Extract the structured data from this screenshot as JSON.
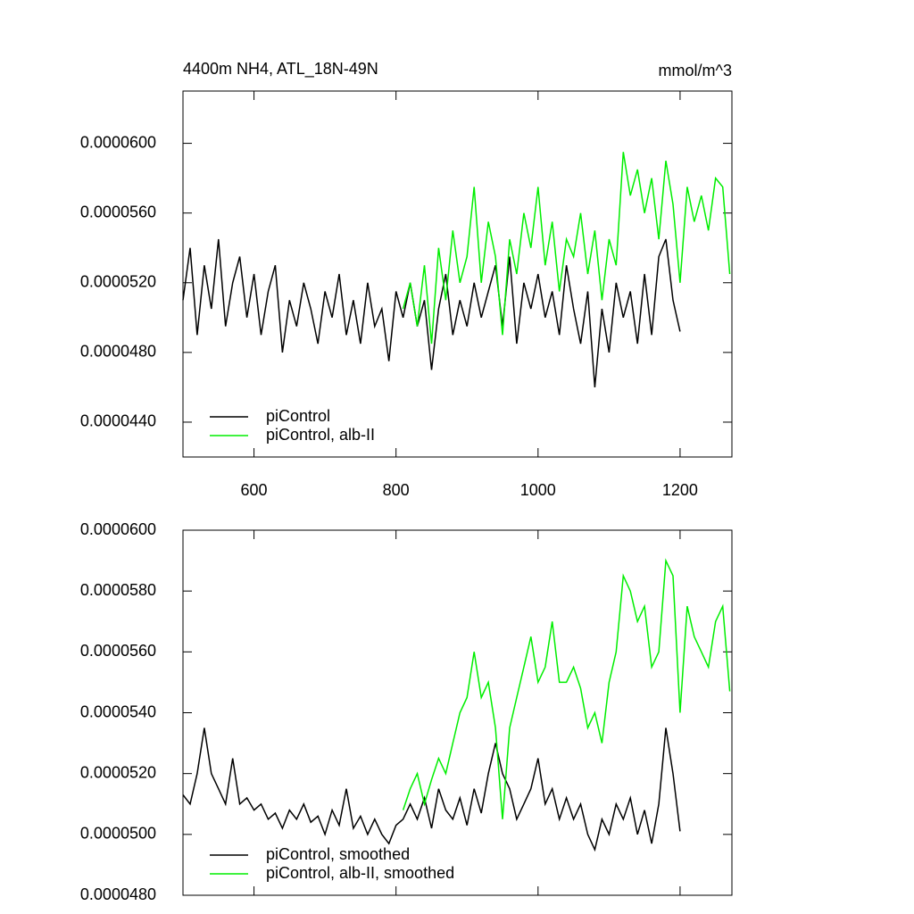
{
  "chart_data": [
    {
      "type": "line",
      "title": "4400m NH4, ATL_18N-49N",
      "units": "mmol/m^3",
      "xlim": [
        500,
        1273
      ],
      "xticks": [
        600,
        800,
        1000,
        1200
      ],
      "xtick_labels": true,
      "ylim": [
        4.2e-05,
        6.3e-05
      ],
      "yticks": [
        {
          "value": 4.4e-05,
          "label": "0.0000440"
        },
        {
          "value": 4.8e-05,
          "label": "0.0000480"
        },
        {
          "value": 5.2e-05,
          "label": "0.0000520"
        },
        {
          "value": 5.6e-05,
          "label": "0.0000560"
        },
        {
          "value": 6e-05,
          "label": "0.0000600"
        }
      ],
      "legend": "lower left",
      "series": [
        {
          "name": "piControl",
          "color": "#000000",
          "x": [
            500,
            510,
            520,
            530,
            540,
            550,
            560,
            570,
            580,
            590,
            600,
            610,
            620,
            630,
            640,
            650,
            660,
            670,
            680,
            690,
            700,
            710,
            720,
            730,
            740,
            750,
            760,
            770,
            780,
            790,
            800,
            810,
            820,
            830,
            840,
            850,
            860,
            870,
            880,
            890,
            900,
            910,
            920,
            930,
            940,
            950,
            960,
            970,
            980,
            990,
            1000,
            1010,
            1020,
            1030,
            1040,
            1050,
            1060,
            1070,
            1080,
            1090,
            1100,
            1110,
            1120,
            1130,
            1140,
            1150,
            1160,
            1170,
            1180,
            1190,
            1200
          ],
          "values": [
            5.1e-05,
            5.4e-05,
            4.9e-05,
            5.3e-05,
            5.05e-05,
            5.45e-05,
            4.95e-05,
            5.2e-05,
            5.35e-05,
            5e-05,
            5.25e-05,
            4.9e-05,
            5.15e-05,
            5.3e-05,
            4.8e-05,
            5.1e-05,
            4.95e-05,
            5.2e-05,
            5.05e-05,
            4.85e-05,
            5.15e-05,
            5e-05,
            5.25e-05,
            4.9e-05,
            5.1e-05,
            4.85e-05,
            5.2e-05,
            4.95e-05,
            5.05e-05,
            4.75e-05,
            5.15e-05,
            5e-05,
            5.2e-05,
            4.95e-05,
            5.1e-05,
            4.7e-05,
            5.05e-05,
            5.25e-05,
            4.9e-05,
            5.1e-05,
            4.95e-05,
            5.2e-05,
            5e-05,
            5.15e-05,
            5.3e-05,
            4.95e-05,
            5.35e-05,
            4.85e-05,
            5.2e-05,
            5.05e-05,
            5.25e-05,
            5e-05,
            5.15e-05,
            4.9e-05,
            5.3e-05,
            5.05e-05,
            4.85e-05,
            5.15e-05,
            4.6e-05,
            5.05e-05,
            4.8e-05,
            5.2e-05,
            5e-05,
            5.15e-05,
            4.85e-05,
            5.25e-05,
            4.9e-05,
            5.35e-05,
            5.45e-05,
            5.1e-05,
            4.92e-05
          ]
        },
        {
          "name": "piControl, alb-II",
          "color": "#00ee00",
          "x": [
            810,
            820,
            830,
            840,
            850,
            860,
            870,
            880,
            890,
            900,
            910,
            920,
            930,
            940,
            950,
            960,
            970,
            980,
            990,
            1000,
            1010,
            1020,
            1030,
            1040,
            1050,
            1060,
            1070,
            1080,
            1090,
            1100,
            1110,
            1120,
            1130,
            1140,
            1150,
            1160,
            1170,
            1180,
            1190,
            1200,
            1210,
            1220,
            1230,
            1240,
            1250,
            1260,
            1270
          ],
          "values": [
            5.05e-05,
            5.2e-05,
            4.95e-05,
            5.3e-05,
            4.85e-05,
            5.4e-05,
            5.1e-05,
            5.5e-05,
            5.2e-05,
            5.35e-05,
            5.75e-05,
            5.2e-05,
            5.55e-05,
            5.35e-05,
            4.9e-05,
            5.45e-05,
            5.25e-05,
            5.6e-05,
            5.4e-05,
            5.75e-05,
            5.3e-05,
            5.55e-05,
            5.15e-05,
            5.45e-05,
            5.35e-05,
            5.6e-05,
            5.25e-05,
            5.5e-05,
            5.1e-05,
            5.45e-05,
            5.3e-05,
            5.95e-05,
            5.7e-05,
            5.85e-05,
            5.6e-05,
            5.8e-05,
            5.45e-05,
            5.9e-05,
            5.65e-05,
            5.2e-05,
            5.75e-05,
            5.55e-05,
            5.7e-05,
            5.5e-05,
            5.8e-05,
            5.75e-05,
            5.25e-05
          ]
        }
      ]
    },
    {
      "type": "line",
      "xlim": [
        500,
        1273
      ],
      "xticks": [
        600,
        800,
        1000,
        1200
      ],
      "xtick_labels": false,
      "ylim": [
        4.8e-05,
        6e-05
      ],
      "yticks": [
        {
          "value": 4.8e-05,
          "label": "0.0000480"
        },
        {
          "value": 5e-05,
          "label": "0.0000500"
        },
        {
          "value": 5.2e-05,
          "label": "0.0000520"
        },
        {
          "value": 5.4e-05,
          "label": "0.0000540"
        },
        {
          "value": 5.6e-05,
          "label": "0.0000560"
        },
        {
          "value": 5.8e-05,
          "label": "0.0000580"
        },
        {
          "value": 6e-05,
          "label": "0.0000600"
        }
      ],
      "legend": "lower left",
      "series": [
        {
          "name": "piControl, smoothed",
          "color": "#000000",
          "x": [
            500,
            510,
            520,
            530,
            540,
            550,
            560,
            570,
            580,
            590,
            600,
            610,
            620,
            630,
            640,
            650,
            660,
            670,
            680,
            690,
            700,
            710,
            720,
            730,
            740,
            750,
            760,
            770,
            780,
            790,
            800,
            810,
            820,
            830,
            840,
            850,
            860,
            870,
            880,
            890,
            900,
            910,
            920,
            930,
            940,
            950,
            960,
            970,
            980,
            990,
            1000,
            1010,
            1020,
            1030,
            1040,
            1050,
            1060,
            1070,
            1080,
            1090,
            1100,
            1110,
            1120,
            1130,
            1140,
            1150,
            1160,
            1170,
            1180,
            1190,
            1200
          ],
          "values": [
            5.13e-05,
            5.1e-05,
            5.2e-05,
            5.35e-05,
            5.2e-05,
            5.15e-05,
            5.1e-05,
            5.25e-05,
            5.1e-05,
            5.12e-05,
            5.08e-05,
            5.1e-05,
            5.05e-05,
            5.07e-05,
            5.02e-05,
            5.08e-05,
            5.05e-05,
            5.1e-05,
            5.04e-05,
            5.06e-05,
            5e-05,
            5.08e-05,
            5.03e-05,
            5.15e-05,
            5.02e-05,
            5.06e-05,
            5e-05,
            5.05e-05,
            5e-05,
            4.97e-05,
            5.03e-05,
            5.05e-05,
            5.1e-05,
            5.05e-05,
            5.12e-05,
            5.02e-05,
            5.15e-05,
            5.08e-05,
            5.05e-05,
            5.12e-05,
            5.03e-05,
            5.15e-05,
            5.07e-05,
            5.2e-05,
            5.3e-05,
            5.2e-05,
            5.15e-05,
            5.05e-05,
            5.1e-05,
            5.15e-05,
            5.25e-05,
            5.1e-05,
            5.15e-05,
            5.05e-05,
            5.12e-05,
            5.05e-05,
            5.1e-05,
            5e-05,
            4.95e-05,
            5.05e-05,
            5e-05,
            5.1e-05,
            5.05e-05,
            5.12e-05,
            5e-05,
            5.08e-05,
            4.97e-05,
            5.1e-05,
            5.35e-05,
            5.2e-05,
            5.01e-05
          ]
        },
        {
          "name": "piControl, alb-II, smoothed",
          "color": "#00ee00",
          "x": [
            810,
            820,
            830,
            840,
            850,
            860,
            870,
            880,
            890,
            900,
            910,
            920,
            930,
            940,
            950,
            960,
            970,
            980,
            990,
            1000,
            1010,
            1020,
            1030,
            1040,
            1050,
            1060,
            1070,
            1080,
            1090,
            1100,
            1110,
            1120,
            1130,
            1140,
            1150,
            1160,
            1170,
            1180,
            1190,
            1200,
            1210,
            1220,
            1230,
            1240,
            1250,
            1260,
            1270
          ],
          "values": [
            5.08e-05,
            5.15e-05,
            5.2e-05,
            5.1e-05,
            5.18e-05,
            5.25e-05,
            5.2e-05,
            5.3e-05,
            5.4e-05,
            5.45e-05,
            5.6e-05,
            5.45e-05,
            5.5e-05,
            5.35e-05,
            5.05e-05,
            5.35e-05,
            5.45e-05,
            5.55e-05,
            5.65e-05,
            5.5e-05,
            5.55e-05,
            5.7e-05,
            5.5e-05,
            5.5e-05,
            5.55e-05,
            5.48e-05,
            5.35e-05,
            5.4e-05,
            5.3e-05,
            5.5e-05,
            5.6e-05,
            5.85e-05,
            5.8e-05,
            5.7e-05,
            5.75e-05,
            5.55e-05,
            5.6e-05,
            5.9e-05,
            5.85e-05,
            5.4e-05,
            5.75e-05,
            5.65e-05,
            5.6e-05,
            5.55e-05,
            5.7e-05,
            5.75e-05,
            5.47e-05
          ]
        }
      ]
    }
  ]
}
